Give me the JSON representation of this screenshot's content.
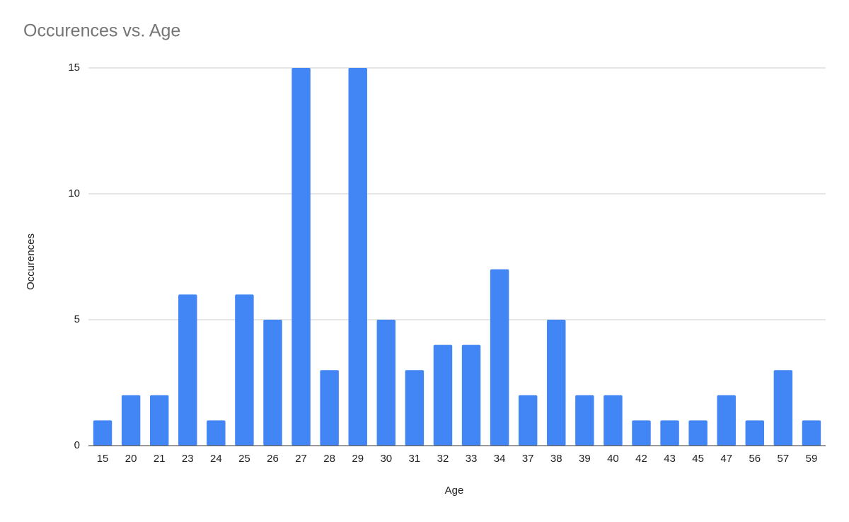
{
  "chart_data": {
    "type": "bar",
    "title": "Occurences vs. Age",
    "x_label": "Age",
    "y_label": "Occurences",
    "categories": [
      "15",
      "20",
      "21",
      "23",
      "24",
      "25",
      "26",
      "27",
      "28",
      "29",
      "30",
      "31",
      "32",
      "33",
      "34",
      "37",
      "38",
      "39",
      "40",
      "42",
      "43",
      "45",
      "47",
      "56",
      "57",
      "59"
    ],
    "values": [
      1,
      2,
      2,
      6,
      1,
      6,
      5,
      15,
      3,
      15,
      5,
      3,
      4,
      4,
      7,
      2,
      5,
      2,
      2,
      1,
      1,
      1,
      2,
      1,
      3,
      1
    ],
    "color": "#4285f4",
    "ylim": [
      0,
      15
    ],
    "yticks": [
      0,
      5,
      10,
      15
    ],
    "grid": true
  }
}
